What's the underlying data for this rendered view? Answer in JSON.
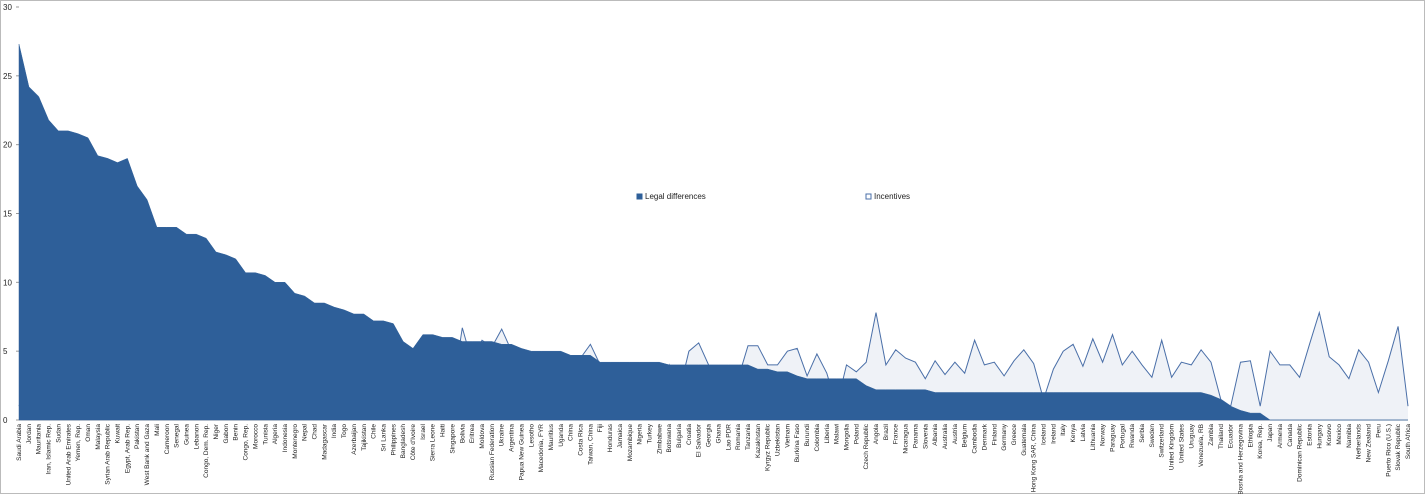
{
  "chart_data": {
    "type": "area",
    "categories": [
      "Saudi Arabia",
      "Jordan",
      "Mauritania",
      "Iran, Islamic Rep.",
      "Sudan",
      "United Arab Emirates",
      "Yemen, Rep.",
      "Oman",
      "Malaysia",
      "Syrian Arab Republic",
      "Kuwait",
      "Egypt, Arab Rep.",
      "Pakistan",
      "West Bank and Gaza",
      "Mali",
      "Cameroon",
      "Senegal",
      "Guinea",
      "Lebanon",
      "Congo, Dem. Rep.",
      "Niger",
      "Gabon",
      "Benin",
      "Congo, Rep.",
      "Morocco",
      "Tunisia",
      "Algeria",
      "Indonesia",
      "Montenegro",
      "Nepal",
      "Chad",
      "Madagascar",
      "India",
      "Togo",
      "Azerbaijan",
      "Tajikistan",
      "Chile",
      "Sri Lanka",
      "Philippines",
      "Bangladesh",
      "Côte d'Ivoire",
      "Israel",
      "Sierra Leone",
      "Haiti",
      "Singapore",
      "Bolivia",
      "Eritrea",
      "Moldova",
      "Russian Federation",
      "Ukraine",
      "Argentina",
      "Papua New Guinea",
      "Lesotho",
      "Macedonia, FYR",
      "Mauritius",
      "Uganda",
      "China",
      "Costa Rica",
      "Taiwan, China",
      "Fiji",
      "Honduras",
      "Jamaica",
      "Mozambique",
      "Nigeria",
      "Turkey",
      "Zimbabwe",
      "Botswana",
      "Bulgaria",
      "Croatia",
      "El Salvador",
      "Georgia",
      "Ghana",
      "Lao PDR",
      "Romania",
      "Tanzania",
      "Kazakhstan",
      "Kyrgyz Republic",
      "Uzbekistan",
      "Vietnam",
      "Burkina Faso",
      "Burundi",
      "Colombia",
      "Liberia",
      "Malawi",
      "Mongolia",
      "Poland",
      "Czech Republic",
      "Angola",
      "Brazil",
      "France",
      "Nicaragua",
      "Panama",
      "Slovenia",
      "Albania",
      "Australia",
      "Austria",
      "Belgium",
      "Cambodia",
      "Denmark",
      "Finland",
      "Germany",
      "Greece",
      "Guatemala",
      "Hong Kong SAR, China",
      "Iceland",
      "Ireland",
      "Italy",
      "Kenya",
      "Latvia",
      "Lithuania",
      "Norway",
      "Paraguay",
      "Portugal",
      "Rwanda",
      "Serbia",
      "Sweden",
      "Switzerland",
      "United Kingdom",
      "United States",
      "Uruguay",
      "Venezuela, RB",
      "Zambia",
      "Thailand",
      "Ecuador",
      "Bosnia and Herzegovina",
      "Ethiopia",
      "Korea, Rep.",
      "Japan",
      "Armenia",
      "Canada",
      "Dominican Republic",
      "Estonia",
      "Hungary",
      "Kosovo",
      "Mexico",
      "Namibia",
      "Netherlands",
      "New Zealand",
      "Peru",
      "Puerto Rico (U.S.)",
      "Slovak Republic",
      "South Africa"
    ],
    "series": [
      {
        "name": "Incentives",
        "color": "#4a6fa8",
        "values": [
          1,
          3.2,
          4,
          2,
          2,
          1,
          1,
          1,
          1,
          1,
          2,
          2,
          1.2,
          2,
          3,
          3,
          2,
          4,
          1,
          2,
          5,
          3.2,
          4,
          2,
          5,
          2,
          2,
          2,
          2,
          5.5,
          1.2,
          5,
          3,
          3,
          5,
          5,
          5,
          2,
          3,
          1.5,
          4,
          4,
          0.2,
          3,
          2,
          6.7,
          4.2,
          5.8,
          5.3,
          6.6,
          5,
          2,
          3.3,
          3.2,
          4.2,
          3.5,
          3.2,
          4.5,
          5.5,
          4,
          4,
          4,
          2,
          2,
          2,
          2,
          4,
          2,
          5,
          5.6,
          4,
          1,
          3,
          3,
          5.4,
          5.4,
          4,
          4,
          5,
          5.2,
          3.2,
          4.8,
          3.4,
          1,
          4,
          3.5,
          4.2,
          7.8,
          4,
          5.1,
          4.5,
          4.2,
          3,
          4.3,
          3.3,
          4.2,
          3.4,
          5.8,
          4,
          4.2,
          3.2,
          4.3,
          5.1,
          4.1,
          1.5,
          3.7,
          5,
          5.5,
          3.9,
          5.9,
          4.2,
          6.2,
          4,
          5,
          4,
          3.1,
          5.8,
          3.1,
          4.2,
          4,
          5.1,
          4.2,
          1.5,
          1,
          4.2,
          4.3,
          1,
          5,
          4,
          4,
          3.1,
          5.5,
          7.8,
          4.6,
          4,
          3,
          5.1,
          4.2,
          2,
          4.3,
          6.8,
          1
        ]
      },
      {
        "name": "Legal differences",
        "color": "#2e5f99",
        "values": [
          27.3,
          24.2,
          23.5,
          21.8,
          21,
          21,
          20.8,
          20.5,
          19.2,
          19,
          18.7,
          19,
          17,
          16,
          14,
          14,
          14,
          13.5,
          13.5,
          13.2,
          12.2,
          12,
          11.7,
          10.7,
          10.7,
          10.5,
          10,
          10,
          9.2,
          9,
          8.5,
          8.5,
          8.2,
          8,
          7.7,
          7.7,
          7.2,
          7.2,
          7,
          5.7,
          5.2,
          6.2,
          6.2,
          6,
          6,
          5.7,
          5.7,
          5.7,
          5.7,
          5.5,
          5.5,
          5.2,
          5,
          5,
          5,
          5,
          4.7,
          4.7,
          4.7,
          4.2,
          4.2,
          4.2,
          4.2,
          4.2,
          4.2,
          4.2,
          4,
          4,
          4,
          4,
          4,
          4,
          4,
          4,
          4,
          3.7,
          3.7,
          3.5,
          3.5,
          3.2,
          3,
          3,
          3,
          3,
          3,
          3,
          2.5,
          2.2,
          2.2,
          2.2,
          2.2,
          2.2,
          2.2,
          2,
          2,
          2,
          2,
          2,
          2,
          2,
          2,
          2,
          2,
          2,
          2,
          2,
          2,
          2,
          2,
          2,
          2,
          2,
          2,
          2,
          2,
          2,
          2,
          2,
          2,
          2,
          2,
          1.8,
          1.5,
          1,
          0.7,
          0.5,
          0.5,
          0,
          0,
          0,
          0,
          0,
          0,
          0,
          0,
          0,
          0,
          0,
          0,
          0,
          0,
          0
        ]
      }
    ],
    "ylim": [
      0,
      30
    ],
    "yticks": [
      0,
      5,
      10,
      15,
      20,
      25,
      30
    ],
    "legend": "center"
  }
}
